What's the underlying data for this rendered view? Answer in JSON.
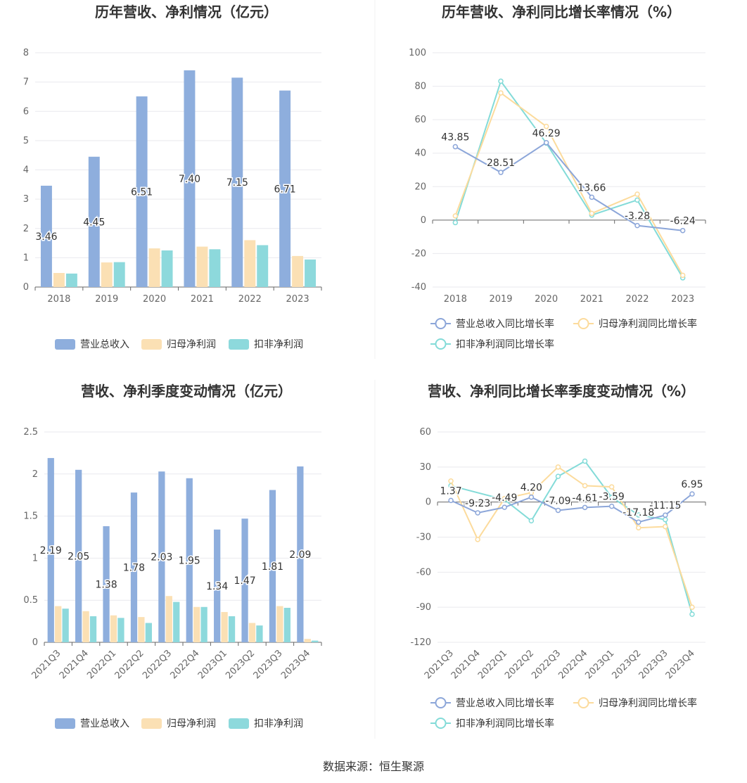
{
  "source": "数据来源：恒生聚源",
  "legend_labels": {
    "revenue": "营业总收入",
    "net_profit": "归母净利润",
    "deducted_profit": "扣非净利润",
    "revenue_growth": "营业总收入同比增长率",
    "net_profit_growth": "归母净利润同比增长率",
    "deducted_profit_growth": "扣非净利润同比增长率"
  },
  "colors": {
    "revenue": "#8eaedd",
    "net_profit": "#fbe0b4",
    "deducted_profit": "#8dd9dc",
    "revenue_line": "#8ca6d9",
    "net_profit_line": "#fcdb9c",
    "deducted_profit_line": "#83dbd8"
  },
  "chart_data": [
    {
      "id": "c1",
      "type": "bar",
      "title": "历年营收、净利情况（亿元）",
      "categories": [
        "2018",
        "2019",
        "2020",
        "2021",
        "2022",
        "2023"
      ],
      "ylim": [
        0,
        8
      ],
      "yticks": [
        0,
        1,
        2,
        3,
        4,
        5,
        6,
        7,
        8
      ],
      "grid": true,
      "legend": "bottom",
      "series": [
        {
          "name": "营业总收入",
          "key": "revenue",
          "values": [
            3.46,
            4.45,
            6.51,
            7.4,
            7.15,
            6.71
          ],
          "labels": [
            "3.46",
            "4.45",
            "6.51",
            "7.40",
            "7.15",
            "6.71"
          ]
        },
        {
          "name": "归母净利润",
          "key": "net_profit",
          "values": [
            0.48,
            0.84,
            1.32,
            1.38,
            1.6,
            1.06
          ]
        },
        {
          "name": "扣非净利润",
          "key": "deducted_profit",
          "values": [
            0.46,
            0.85,
            1.25,
            1.29,
            1.43,
            0.94
          ]
        }
      ]
    },
    {
      "id": "c2",
      "type": "line",
      "title": "历年营收、净利同比增长率情况（%）",
      "categories": [
        "2018",
        "2019",
        "2020",
        "2021",
        "2022",
        "2023"
      ],
      "ylim": [
        -40,
        100
      ],
      "yticks": [
        -40,
        -20,
        0,
        20,
        40,
        60,
        80,
        100
      ],
      "grid": true,
      "legend": "bottom",
      "series": [
        {
          "name": "营业总收入同比增长率",
          "key": "revenue_line",
          "values": [
            43.85,
            28.51,
            46.29,
            13.66,
            -3.28,
            -6.24
          ],
          "labels": [
            "43.85",
            "28.51",
            "46.29",
            "13.66",
            "-3.28",
            "-6.24"
          ]
        },
        {
          "name": "归母净利润同比增长率",
          "key": "net_profit_line",
          "values": [
            2.5,
            76,
            56,
            4,
            15.5,
            -33
          ]
        },
        {
          "name": "扣非净利润同比增长率",
          "key": "deducted_profit_line",
          "values": [
            -1.5,
            83,
            46,
            3,
            12,
            -34.5
          ]
        }
      ]
    },
    {
      "id": "c3",
      "type": "bar",
      "title": "营收、净利季度变动情况（亿元）",
      "categories": [
        "2021Q3",
        "2021Q4",
        "2022Q1",
        "2022Q2",
        "2022Q3",
        "2022Q4",
        "2023Q1",
        "2023Q2",
        "2023Q3",
        "2023Q4"
      ],
      "ylim": [
        0,
        2.5
      ],
      "yticks": [
        0,
        0.5,
        1,
        1.5,
        2,
        2.5
      ],
      "ytick_labels": [
        "0",
        "0.5",
        "1",
        "1.5",
        "2",
        "2.5"
      ],
      "grid": true,
      "legend": "bottom",
      "series": [
        {
          "name": "营业总收入",
          "key": "revenue",
          "values": [
            2.19,
            2.05,
            1.38,
            1.78,
            2.03,
            1.95,
            1.34,
            1.47,
            1.81,
            2.09
          ],
          "labels": [
            "2.19",
            "2.05",
            "1.38",
            "1.78",
            "2.03",
            "1.95",
            "1.34",
            "1.47",
            "1.81",
            "2.09"
          ]
        },
        {
          "name": "归母净利润",
          "key": "net_profit",
          "values": [
            0.43,
            0.37,
            0.32,
            0.3,
            0.55,
            0.42,
            0.36,
            0.23,
            0.43,
            0.04
          ]
        },
        {
          "name": "扣非净利润",
          "key": "deducted_profit",
          "values": [
            0.4,
            0.31,
            0.29,
            0.23,
            0.48,
            0.42,
            0.31,
            0.2,
            0.41,
            0.02
          ]
        }
      ]
    },
    {
      "id": "c4",
      "type": "line",
      "title": "营收、净利同比增长率季度变动情况（%）",
      "categories": [
        "2021Q3",
        "2021Q4",
        "2022Q1",
        "2022Q2",
        "2022Q3",
        "2022Q4",
        "2023Q1",
        "2023Q2",
        "2023Q3",
        "2023Q4"
      ],
      "ylim": [
        -120,
        60
      ],
      "yticks": [
        -120,
        -90,
        -60,
        -30,
        0,
        30,
        60
      ],
      "grid": true,
      "legend": "bottom",
      "series": [
        {
          "name": "营业总收入同比增长率",
          "key": "revenue_line",
          "values": [
            1.37,
            -9.23,
            -4.49,
            4.2,
            -7.09,
            -4.61,
            -3.59,
            -17.18,
            -11.15,
            6.95
          ],
          "labels": [
            "1.37",
            "-9.23",
            "-4.49",
            "4.20",
            "-7.09",
            "-4.61",
            "-3.59",
            "-17.18",
            "-11.15",
            "6.95"
          ]
        },
        {
          "name": "归母净利润同比增长率",
          "key": "net_profit_line",
          "values": [
            18,
            -32,
            3,
            8,
            30,
            14,
            13,
            -22,
            -21,
            -90
          ]
        },
        {
          "name": "扣非净利润同比增长率",
          "key": "deducted_profit_line",
          "values": [
            14,
            null,
            2,
            -16,
            22,
            35,
            4,
            -11,
            -15,
            -96
          ]
        }
      ]
    }
  ]
}
